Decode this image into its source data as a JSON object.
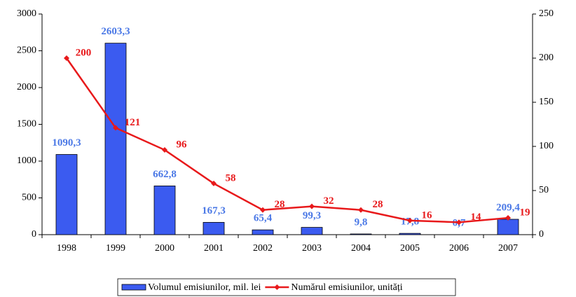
{
  "chart_data": {
    "type": "bar_line",
    "categories": [
      "1998",
      "1999",
      "2000",
      "2001",
      "2002",
      "2003",
      "2004",
      "2005",
      "2006",
      "2007"
    ],
    "series": [
      {
        "name": "Volumul emisiunilor, mil. lei",
        "color": "#3b5bf0",
        "type": "bar",
        "axis": "y",
        "values": [
          1090.3,
          2603.3,
          662.8,
          167.3,
          65.4,
          99.3,
          9.8,
          17.8,
          0.7,
          209.4
        ],
        "value_labels": [
          "1090,3",
          "2603,3",
          "662,8",
          "167,3",
          "65,4",
          "99,3",
          "9,8",
          "17,8",
          "0,7",
          "209,4"
        ],
        "label_color": "#4a78e6"
      },
      {
        "name": "Numărul emisiunilor, unități",
        "color": "#e8191b",
        "type": "line",
        "axis": "y2",
        "values": [
          200,
          121,
          96,
          58,
          28,
          32,
          28,
          16,
          14,
          19
        ]
      }
    ],
    "ylim": [
      0,
      3000
    ],
    "yticks": [
      0,
      500,
      1000,
      1500,
      2000,
      2500,
      3000
    ],
    "y2lim": [
      0,
      250
    ],
    "y2ticks": [
      0,
      50,
      100,
      150,
      200,
      250
    ],
    "legend": "bottom"
  }
}
